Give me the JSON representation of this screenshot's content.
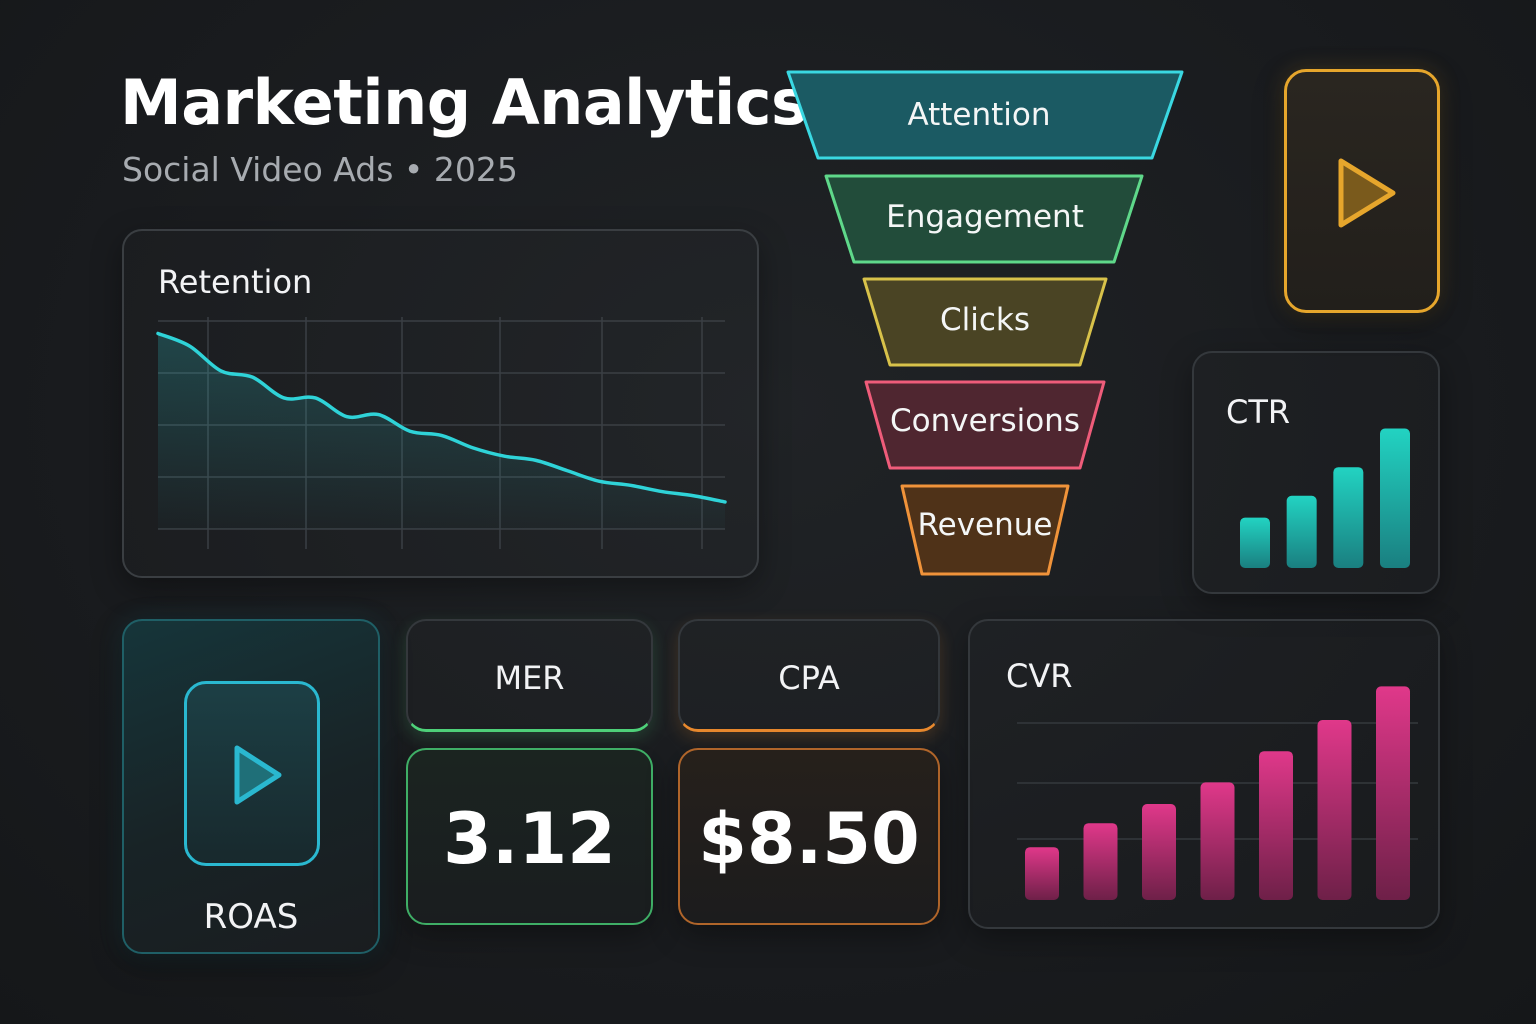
{
  "header": {
    "title": "Marketing Analytics",
    "subtitle": "Social Video Ads • 2025"
  },
  "retention": {
    "label": "Retention",
    "chart_data": {
      "type": "line",
      "title": "Retention",
      "x": [
        0,
        1,
        2,
        3,
        4,
        5,
        6,
        7,
        8,
        9,
        10,
        11,
        12,
        13,
        14,
        15,
        16,
        17,
        18
      ],
      "values": [
        94,
        88,
        76,
        73,
        63,
        63,
        54,
        55,
        47,
        45,
        39,
        35,
        33,
        28,
        23,
        21,
        18,
        16,
        13
      ],
      "ylim": [
        0,
        100
      ],
      "grid": true,
      "accent": "#2fd3d8"
    }
  },
  "funnel": {
    "stages": [
      {
        "label": "Attention",
        "stroke": "#3ad8e2",
        "fill": "#1b5a63"
      },
      {
        "label": "Engagement",
        "stroke": "#5fd88a",
        "fill": "#224c3a"
      },
      {
        "label": "Clicks",
        "stroke": "#d8c24a",
        "fill": "#4a4424"
      },
      {
        "label": "Conversions",
        "stroke": "#ef5c7a",
        "fill": "#4f2630"
      },
      {
        "label": "Revenue",
        "stroke": "#f0933a",
        "fill": "#4f3218"
      }
    ]
  },
  "video_preview": {
    "icon": "play-icon",
    "accent": "#e6a62c"
  },
  "ctr": {
    "label": "CTR",
    "chart_data": {
      "type": "bar",
      "title": "CTR",
      "values": [
        30,
        43,
        60,
        83
      ],
      "ylim": [
        0,
        100
      ],
      "color_top": "#22d3c2",
      "color_bottom": "#1a7f80"
    }
  },
  "roas": {
    "label": "ROAS",
    "icon": "play-icon",
    "accent": "#2ab8d0"
  },
  "mer": {
    "label": "MER",
    "value": "3.12",
    "accent": "#4fd27a"
  },
  "cpa": {
    "label": "CPA",
    "value": "$8.50",
    "accent": "#e8892e"
  },
  "cvr": {
    "label": "CVR",
    "chart_data": {
      "type": "bar",
      "title": "CVR",
      "values": [
        22,
        32,
        40,
        49,
        62,
        75,
        89
      ],
      "ylim": [
        0,
        100
      ],
      "grid": true,
      "color_top": "#e0388a",
      "color_bottom": "#6e2048"
    }
  }
}
